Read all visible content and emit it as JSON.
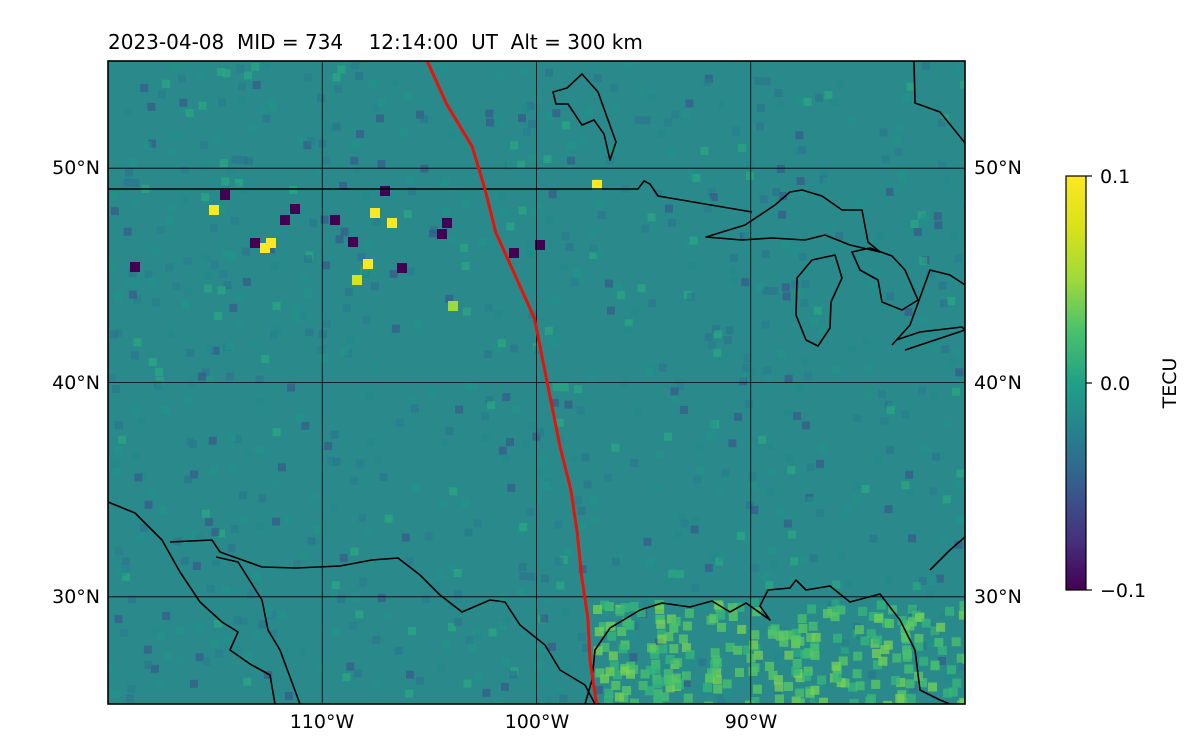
{
  "title": "2023-04-08  MID = 734    12:14:00  UT  Alt = 300 km",
  "map": {
    "lon_range": [
      -120,
      -80
    ],
    "lat_range": [
      25,
      55
    ],
    "grid_lons": [
      -110,
      -100,
      -90
    ],
    "grid_lats": [
      30,
      40,
      50
    ],
    "lon_tick_labels": [
      "110°W",
      "100°W",
      "90°W"
    ],
    "lat_tick_labels": [
      "30°N",
      "40°N",
      "50°N"
    ],
    "background_color": "#2a8a8b",
    "coastline_color": "#000000",
    "track_color": "#e8120b",
    "track_points": [
      [
        -105.1,
        55.0
      ],
      [
        -104.2,
        53.0
      ],
      [
        -103.0,
        51.0
      ],
      [
        -102.4,
        49.0
      ],
      [
        -101.9,
        47.0
      ],
      [
        -101.0,
        45.0
      ],
      [
        -100.1,
        43.0
      ],
      [
        -99.7,
        41.0
      ],
      [
        -99.3,
        39.0
      ],
      [
        -98.9,
        37.0
      ],
      [
        -98.4,
        35.0
      ],
      [
        -98.1,
        33.0
      ],
      [
        -97.9,
        31.0
      ],
      [
        -97.6,
        29.0
      ],
      [
        -97.5,
        27.0
      ],
      [
        -97.2,
        25.0
      ]
    ]
  },
  "colorbar": {
    "label": "TECU",
    "min": -0.1,
    "max": 0.1,
    "tick_labels": [
      "0.1",
      "0.0",
      "−0.1"
    ],
    "colormap": "viridis"
  }
}
